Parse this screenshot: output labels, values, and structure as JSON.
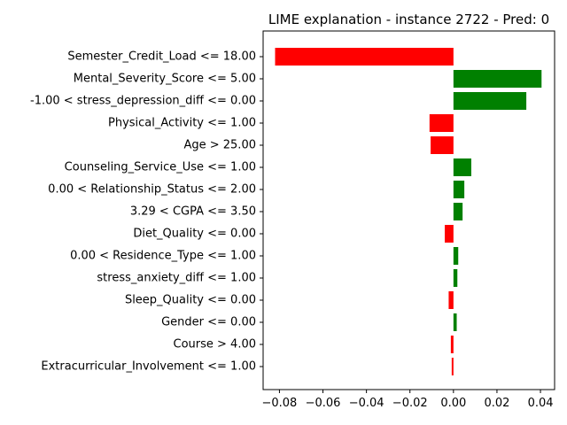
{
  "chart_data": {
    "type": "bar",
    "orientation": "horizontal",
    "title": "LIME explanation - instance 2722 - Pred: 0",
    "xlabel": "",
    "ylabel": "",
    "xlim": [
      -0.0875,
      0.0465
    ],
    "x_ticks": [
      -0.08,
      -0.06,
      -0.04,
      -0.02,
      0.0,
      0.02,
      0.04
    ],
    "x_tick_labels": [
      "−0.08",
      "−0.06",
      "−0.04",
      "−0.02",
      "0.00",
      "0.02",
      "0.04"
    ],
    "grid": false,
    "colors": {
      "positive": "#008000",
      "negative": "#ff0000"
    },
    "categories": [
      "Semester_Credit_Load <= 18.00",
      "Mental_Severity_Score <= 5.00",
      "-1.00 < stress_depression_diff <= 0.00",
      "Physical_Activity <= 1.00",
      "Age > 25.00",
      "Counseling_Service_Use <= 1.00",
      "0.00 < Relationship_Status <= 2.00",
      "3.29 < CGPA <= 3.50",
      "Diet_Quality <= 0.00",
      "0.00 < Residence_Type <= 1.00",
      "stress_anxiety_diff <= 1.00",
      "Sleep_Quality <= 0.00",
      "Gender <= 0.00",
      "Course > 4.00",
      "Extracurricular_Involvement <= 1.00"
    ],
    "values": [
      -0.082,
      0.0405,
      0.0335,
      -0.011,
      -0.0105,
      0.0082,
      0.005,
      0.0042,
      -0.004,
      0.0022,
      0.0018,
      -0.0022,
      0.0015,
      -0.0012,
      -0.0008
    ]
  }
}
